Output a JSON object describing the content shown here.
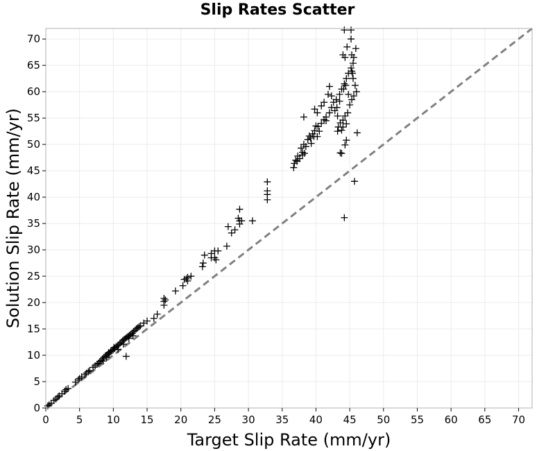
{
  "chart_data": {
    "type": "scatter",
    "title": "Slip Rates Scatter",
    "xlabel": "Target Slip Rate (mm/yr)",
    "ylabel": "Solution Slip Rate (mm/yr)",
    "xlim": [
      0,
      72
    ],
    "ylim": [
      0,
      72
    ],
    "xticks": [
      0,
      5,
      10,
      15,
      20,
      25,
      30,
      35,
      40,
      45,
      50,
      55,
      60,
      65,
      70
    ],
    "yticks": [
      0,
      5,
      10,
      15,
      20,
      25,
      30,
      35,
      40,
      45,
      50,
      55,
      60,
      65,
      70
    ],
    "grid": true,
    "marker": "plus",
    "marker_color": "#000000",
    "reference_line": {
      "style": "dashed",
      "color": "#808080",
      "from": [
        0,
        0
      ],
      "to": [
        72,
        72
      ]
    },
    "series": [
      {
        "points": [
          [
            0.3,
            0.4
          ],
          [
            0.5,
            0.6
          ],
          [
            0.8,
            0.9
          ],
          [
            1.2,
            1.4
          ],
          [
            1.5,
            1.7
          ],
          [
            1.8,
            2.1
          ],
          [
            2.0,
            2.3
          ],
          [
            2.4,
            2.7
          ],
          [
            2.8,
            3.2
          ],
          [
            3.0,
            3.5
          ],
          [
            3.3,
            3.7
          ],
          [
            4.4,
            4.9
          ],
          [
            4.8,
            5.3
          ],
          [
            5.0,
            5.6
          ],
          [
            5.3,
            5.9
          ],
          [
            5.8,
            6.3
          ],
          [
            6.0,
            6.6
          ],
          [
            6.3,
            6.9
          ],
          [
            6.5,
            7.1
          ],
          [
            7.0,
            7.7
          ],
          [
            7.3,
            8.0
          ],
          [
            7.6,
            8.3
          ],
          [
            7.8,
            8.5
          ],
          [
            8.0,
            8.8
          ],
          [
            8.2,
            9.0
          ],
          [
            8.4,
            9.3
          ],
          [
            8.6,
            9.6
          ],
          [
            8.8,
            9.8
          ],
          [
            9.0,
            10.0
          ],
          [
            9.2,
            10.2
          ],
          [
            9.4,
            10.4
          ],
          [
            9.6,
            10.7
          ],
          [
            9.8,
            10.9
          ],
          [
            10.0,
            11.1
          ],
          [
            10.2,
            11.3
          ],
          [
            10.4,
            11.6
          ],
          [
            10.6,
            11.8
          ],
          [
            10.8,
            12.0
          ],
          [
            11.0,
            12.3
          ],
          [
            11.2,
            12.5
          ],
          [
            11.4,
            12.8
          ],
          [
            11.6,
            13.0
          ],
          [
            11.8,
            13.2
          ],
          [
            12.0,
            13.4
          ],
          [
            12.2,
            13.6
          ],
          [
            12.4,
            13.8
          ],
          [
            12.6,
            14.0
          ],
          [
            12.8,
            14.2
          ],
          [
            13.0,
            14.5
          ],
          [
            13.2,
            14.7
          ],
          [
            13.4,
            15.0
          ],
          [
            13.6,
            15.2
          ],
          [
            13.8,
            15.4
          ],
          [
            14.0,
            15.6
          ],
          [
            14.5,
            16.1
          ],
          [
            15.0,
            16.5
          ],
          [
            9.3,
            10.5
          ],
          [
            10.1,
            11.5
          ],
          [
            11.5,
            12.1
          ],
          [
            12.3,
            13.2
          ],
          [
            11.9,
            9.8
          ],
          [
            10.7,
            11.1
          ],
          [
            12.9,
            13.7
          ],
          [
            9.0,
            9.6
          ],
          [
            8.5,
            8.9
          ],
          [
            16.0,
            17.0
          ],
          [
            16.5,
            17.8
          ],
          [
            17.5,
            19.5
          ],
          [
            17.5,
            20.2
          ],
          [
            17.5,
            20.8
          ],
          [
            17.7,
            20.5
          ],
          [
            19.2,
            22.2
          ],
          [
            20.3,
            23.2
          ],
          [
            20.5,
            24.4
          ],
          [
            21.0,
            24.8
          ],
          [
            21.0,
            24.1
          ],
          [
            20.8,
            24.5
          ],
          [
            21.5,
            25.0
          ],
          [
            23.2,
            26.8
          ],
          [
            23.3,
            27.5
          ],
          [
            23.5,
            29.0
          ],
          [
            24.5,
            28.5
          ],
          [
            24.5,
            29.3
          ],
          [
            25.0,
            28.5
          ],
          [
            25.0,
            29.8
          ],
          [
            25.5,
            29.8
          ],
          [
            25.2,
            28.1
          ],
          [
            26.8,
            30.7
          ],
          [
            27.0,
            34.4
          ],
          [
            27.5,
            33.2
          ],
          [
            28.0,
            33.8
          ],
          [
            28.5,
            36.0
          ],
          [
            28.7,
            34.9
          ],
          [
            28.7,
            35.5
          ],
          [
            29.0,
            35.5
          ],
          [
            28.7,
            37.7
          ],
          [
            30.6,
            35.5
          ],
          [
            32.8,
            40.5
          ],
          [
            32.8,
            41.2
          ],
          [
            32.8,
            42.9
          ],
          [
            32.8,
            39.5
          ],
          [
            36.7,
            45.6
          ],
          [
            36.8,
            46.4
          ],
          [
            37.0,
            47.0
          ],
          [
            37.2,
            46.8
          ],
          [
            37.3,
            47.8
          ],
          [
            37.6,
            47.3
          ],
          [
            38.0,
            48.5
          ],
          [
            37.8,
            49.3
          ],
          [
            38.2,
            50.0
          ],
          [
            38.3,
            48.3
          ],
          [
            38.5,
            49.6
          ],
          [
            38.8,
            50.9
          ],
          [
            39.0,
            51.6
          ],
          [
            39.3,
            50.2
          ],
          [
            39.5,
            52.0
          ],
          [
            39.8,
            52.6
          ],
          [
            40.2,
            51.5
          ],
          [
            40.3,
            53.4
          ],
          [
            40.8,
            54.0
          ],
          [
            41.2,
            54.7
          ],
          [
            41.5,
            55.2
          ],
          [
            42.0,
            56.0
          ],
          [
            42.3,
            57.0
          ],
          [
            42.6,
            58.0
          ],
          [
            43.0,
            58.5
          ],
          [
            43.5,
            59.5
          ],
          [
            43.8,
            60.5
          ],
          [
            44.2,
            61.5
          ],
          [
            44.5,
            62.5
          ],
          [
            44.8,
            63.5
          ],
          [
            45.2,
            64.5
          ],
          [
            45.5,
            65.4
          ],
          [
            45.6,
            66.5
          ],
          [
            45.9,
            68.2
          ],
          [
            45.8,
            61.2
          ],
          [
            46.0,
            60.0
          ],
          [
            46.1,
            52.2
          ],
          [
            45.7,
            43.0
          ],
          [
            44.2,
            36.1
          ],
          [
            43.6,
            48.4
          ],
          [
            44.3,
            49.9
          ],
          [
            44.5,
            50.8
          ],
          [
            43.3,
            53.3
          ],
          [
            43.6,
            54.1
          ],
          [
            44.0,
            54.6
          ],
          [
            44.3,
            55.4
          ],
          [
            44.7,
            56.0
          ],
          [
            43.1,
            57.0
          ],
          [
            43.5,
            58.2
          ],
          [
            44.8,
            59.5
          ],
          [
            45.0,
            57.5
          ],
          [
            45.3,
            58.5
          ],
          [
            45.6,
            59.2
          ],
          [
            44.1,
            60.5
          ],
          [
            44.4,
            61.2
          ],
          [
            44.0,
            67.0
          ],
          [
            44.3,
            66.5
          ],
          [
            44.6,
            68.5
          ],
          [
            45.2,
            70.0
          ],
          [
            45.3,
            67.0
          ],
          [
            45.3,
            63.9
          ],
          [
            45.4,
            63.5
          ],
          [
            45.5,
            62.5
          ],
          [
            45.2,
            71.7
          ],
          [
            44.2,
            71.7
          ],
          [
            42.0,
            61.0
          ],
          [
            41.8,
            59.5
          ],
          [
            42.3,
            59.2
          ],
          [
            41.2,
            58.0
          ],
          [
            40.2,
            56.0
          ],
          [
            39.8,
            56.7
          ],
          [
            40.8,
            57.3
          ],
          [
            38.2,
            55.2
          ],
          [
            38.0,
            48.0
          ],
          [
            39.2,
            51.2
          ],
          [
            39.7,
            51.5
          ],
          [
            40.5,
            52.5
          ],
          [
            41.5,
            54.5
          ],
          [
            40.0,
            53.5
          ],
          [
            42.8,
            56.4
          ],
          [
            43.2,
            55.4
          ],
          [
            44.0,
            53.3
          ],
          [
            44.5,
            53.9
          ],
          [
            43.8,
            48.3
          ],
          [
            43.2,
            52.5
          ],
          [
            43.8,
            52.7
          ]
        ]
      }
    ]
  }
}
